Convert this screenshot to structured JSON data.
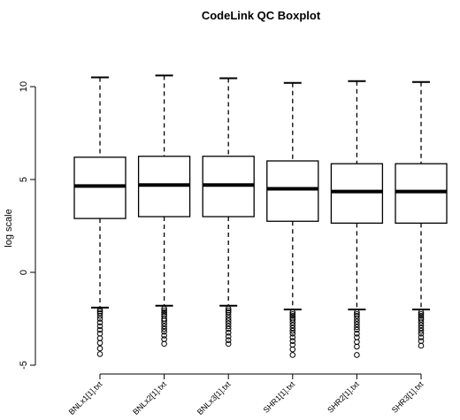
{
  "chart_data": {
    "type": "boxplot",
    "title": "CodeLink QC Boxplot",
    "xlabel": "",
    "ylabel": "log scale",
    "ylim": [
      -5,
      11
    ],
    "yticks": [
      -5,
      0,
      5,
      10
    ],
    "grid": false,
    "categories": [
      "BNLx1[1].txt",
      "BNLx2[1].txt",
      "BNLx3[1].txt",
      "SHR1[1].txt",
      "SHR2[1].txt",
      "SHR3[1].txt"
    ],
    "boxes": [
      {
        "whisker_low": -1.9,
        "q1": 2.9,
        "median": 4.65,
        "q3": 6.2,
        "whisker_high": 10.5,
        "outliers": [
          -2.0,
          -2.1,
          -2.2,
          -2.35,
          -2.5,
          -2.7,
          -2.9,
          -3.1,
          -3.3,
          -3.55,
          -3.8,
          -4.1,
          -4.4
        ]
      },
      {
        "whisker_low": -1.8,
        "q1": 3.0,
        "median": 4.7,
        "q3": 6.25,
        "whisker_high": 10.6,
        "outliers": [
          -1.95,
          -2.05,
          -2.15,
          -2.25,
          -2.35,
          -2.5,
          -2.6,
          -2.75,
          -2.9,
          -3.05,
          -3.2,
          -3.4,
          -3.6,
          -3.85
        ]
      },
      {
        "whisker_low": -1.8,
        "q1": 3.0,
        "median": 4.7,
        "q3": 6.25,
        "whisker_high": 10.45,
        "outliers": [
          -1.95,
          -2.05,
          -2.15,
          -2.3,
          -2.45,
          -2.6,
          -2.75,
          -2.9,
          -3.05,
          -3.25,
          -3.45,
          -3.65,
          -3.85
        ]
      },
      {
        "whisker_low": -2.0,
        "q1": 2.75,
        "median": 4.5,
        "q3": 6.0,
        "whisker_high": 10.2,
        "outliers": [
          -2.15,
          -2.25,
          -2.35,
          -2.45,
          -2.55,
          -2.7,
          -2.85,
          -3.0,
          -3.15,
          -3.3,
          -3.5,
          -3.7,
          -3.9,
          -4.15,
          -4.45
        ]
      },
      {
        "whisker_low": -2.0,
        "q1": 2.65,
        "median": 4.35,
        "q3": 5.85,
        "whisker_high": 10.3,
        "outliers": [
          -2.15,
          -2.25,
          -2.35,
          -2.5,
          -2.65,
          -2.8,
          -2.95,
          -3.1,
          -3.3,
          -3.5,
          -3.75,
          -4.0,
          -4.45
        ]
      },
      {
        "whisker_low": -2.0,
        "q1": 2.65,
        "median": 4.35,
        "q3": 5.85,
        "whisker_high": 10.25,
        "outliers": [
          -2.15,
          -2.25,
          -2.35,
          -2.45,
          -2.55,
          -2.7,
          -2.85,
          -3.0,
          -3.15,
          -3.3,
          -3.5,
          -3.7,
          -3.95
        ]
      }
    ]
  }
}
